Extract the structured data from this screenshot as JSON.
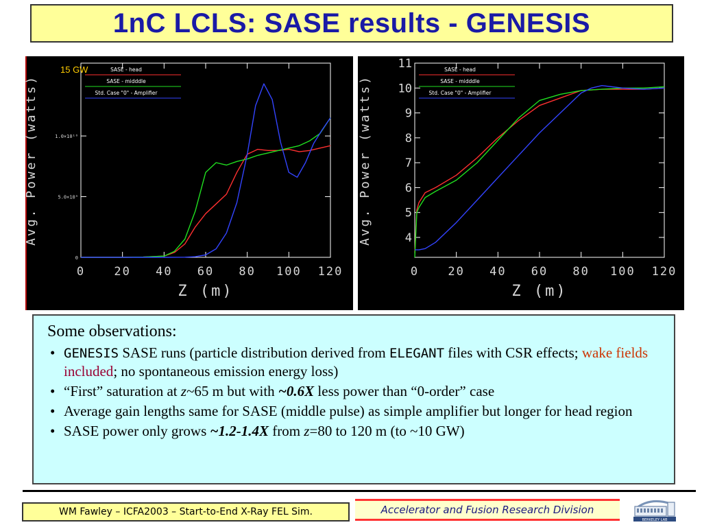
{
  "title": "1nC LCLS: SASE results - GENESIS",
  "observations": {
    "heading": "Some observations:",
    "b1_genesis": "GENESIS",
    "b1_text_a": "  SASE runs (particle distribution derived from ",
    "b1_elegant": "ELEGANT",
    "b1_text_b": " files with CSR effects; ",
    "b1_wake": "wake fields",
    "b1_included": " included",
    "b1_text_c": "; no spontaneous emission energy loss)",
    "b2_text_a": "“First” saturation at ",
    "b2_z": "z",
    "b2_text_b": "~65 m but with ",
    "b2_bold": "~0.6X",
    "b2_text_c": " less power than “0-order” case",
    "b3_text": "Average gain lengths same for SASE (middle pulse) as simple amplifier but longer for head region",
    "b4_text_a": "SASE power only grows ",
    "b4_bold": "~1.2-1.4X",
    "b4_text_b": " from ",
    "b4_z": "z",
    "b4_text_c": "=80 to 120 m (to ~10 GW)",
    "bullet": "•"
  },
  "footer": {
    "left": "WM Fawley – ICFA2003 – Start-to-End X-Ray FEL Sim.",
    "right": "Accelerator and Fusion Research Division"
  },
  "logo": {
    "icon": "berkeley-lab-logo",
    "text": "BERKELEY LAB"
  },
  "chart_data": [
    {
      "type": "line",
      "xlabel": "Z (m)",
      "ylabel": "Avg. Power (watts)",
      "annotation": "15 GW",
      "xlim": [
        0,
        120
      ],
      "ylim": [
        0,
        16000000000.0
      ],
      "xticks": [
        "0",
        "20",
        "40",
        "60",
        "80",
        "100",
        "120"
      ],
      "yticks": [
        {
          "value": 0,
          "label": "0"
        },
        {
          "value": 5000000000.0,
          "label": "5.0×10⁹"
        },
        {
          "value": 10000000000.0,
          "label": "1.0×10¹⁰"
        }
      ],
      "legend_position": "top-left",
      "series": [
        {
          "name": "SASE - head",
          "color": "#ff3030",
          "x": [
            0,
            20,
            30,
            40,
            45,
            50,
            55,
            60,
            65,
            70,
            75,
            80,
            85,
            90,
            95,
            100,
            105,
            110,
            115,
            120
          ],
          "y": [
            0,
            0,
            20000000.0,
            100000000.0,
            400000000.0,
            1100000000.0,
            2500000000.0,
            3600000000.0,
            4400000000.0,
            5200000000.0,
            7000000000.0,
            8500000000.0,
            8900000000.0,
            8800000000.0,
            8800000000.0,
            8900000000.0,
            8700000000.0,
            8800000000.0,
            9000000000.0,
            9200000000.0
          ]
        },
        {
          "name": "SASE - midddle",
          "color": "#20e020",
          "x": [
            0,
            20,
            30,
            40,
            45,
            50,
            55,
            60,
            65,
            70,
            75,
            80,
            85,
            90,
            95,
            100,
            105,
            110,
            115,
            120
          ],
          "y": [
            0,
            0,
            20000000.0,
            100000000.0,
            500000000.0,
            1500000000.0,
            3800000000.0,
            7000000000.0,
            7800000000.0,
            7600000000.0,
            7900000000.0,
            8100000000.0,
            8400000000.0,
            8600000000.0,
            8800000000.0,
            9000000000.0,
            9200000000.0,
            9600000000.0,
            10200000000.0,
            11500000000.0
          ]
        },
        {
          "name": "Std. Case \"0\" - Amplifier",
          "color": "#3344ff",
          "x": [
            0,
            40,
            50,
            55,
            60,
            65,
            70,
            75,
            80,
            84,
            88,
            92,
            96,
            100,
            104,
            108,
            112,
            116,
            120
          ],
          "y": [
            0,
            0,
            10000000.0,
            50000000.0,
            200000000.0,
            700000000.0,
            2000000000.0,
            4500000000.0,
            8500000000.0,
            12500000000.0,
            14300000000.0,
            13000000000.0,
            9500000000.0,
            7000000000.0,
            6600000000.0,
            7800000000.0,
            9400000000.0,
            10500000000.0,
            11500000000.0
          ]
        }
      ]
    },
    {
      "type": "line",
      "xlabel": "Z (m)",
      "ylabel": "Avg. Power (watts)",
      "xlim": [
        0,
        120
      ],
      "ylim": [
        3.2,
        11
      ],
      "y_scale": "log10 of power (tick labels are exponents)",
      "xticks": [
        "0",
        "20",
        "40",
        "60",
        "80",
        "100",
        "120"
      ],
      "yticks": [
        "4",
        "5",
        "6",
        "7",
        "8",
        "9",
        "10",
        "11"
      ],
      "legend_position": "top-left",
      "series": [
        {
          "name": "SASE - head",
          "color": "#ff3030",
          "x": [
            0,
            1,
            2,
            5,
            10,
            20,
            30,
            40,
            50,
            60,
            70,
            80,
            90,
            100,
            110,
            120
          ],
          "y": [
            3.4,
            5.1,
            5.4,
            5.8,
            6.0,
            6.5,
            7.2,
            8.0,
            8.7,
            9.3,
            9.6,
            9.9,
            9.95,
            9.95,
            9.95,
            10.0
          ]
        },
        {
          "name": "SASE - midddle",
          "color": "#20e020",
          "x": [
            0,
            1,
            2,
            5,
            10,
            20,
            30,
            40,
            50,
            60,
            70,
            80,
            90,
            100,
            110,
            120
          ],
          "y": [
            3.2,
            5.0,
            5.2,
            5.6,
            5.85,
            6.3,
            7.0,
            7.9,
            8.8,
            9.5,
            9.75,
            9.9,
            9.95,
            10.0,
            10.0,
            10.05
          ]
        },
        {
          "name": "Std. Case \"0\" - Amplifier",
          "color": "#3344ff",
          "x": [
            0,
            2,
            5,
            10,
            20,
            30,
            40,
            50,
            60,
            70,
            80,
            85,
            90,
            100,
            110,
            120
          ],
          "y": [
            3.5,
            3.5,
            3.55,
            3.8,
            4.6,
            5.5,
            6.4,
            7.3,
            8.2,
            9.0,
            9.8,
            10.0,
            10.1,
            10.0,
            9.95,
            10.0
          ]
        }
      ]
    }
  ]
}
